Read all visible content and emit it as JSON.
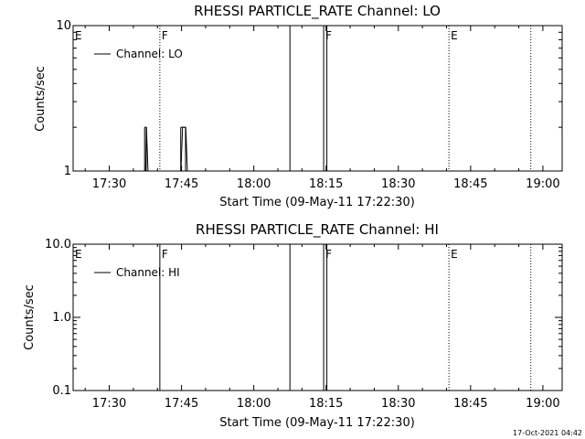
{
  "chart_data": [
    {
      "type": "line",
      "title": "RHESSI PARTICLE_RATE Channel: LO",
      "xlabel": "Start Time (09-May-11 17:22:30)",
      "ylabel": "Counts/sec",
      "y_scale": "log",
      "ylim": [
        1,
        10
      ],
      "xlim": [
        "17:22:30",
        "19:04:00"
      ],
      "x_ticks": [
        "17:30",
        "17:45",
        "18:00",
        "18:15",
        "18:30",
        "18:45",
        "19:00"
      ],
      "y_ticks": [
        "1",
        "10"
      ],
      "legend": {
        "label": "Channel: LO",
        "placement": "top-left"
      },
      "series": [
        {
          "name": "Channel: LO",
          "points": [
            {
              "x": "17:37:10",
              "y": 1
            },
            {
              "x": "17:37:20",
              "y": 2
            },
            {
              "x": "17:37:40",
              "y": 1
            },
            {
              "x": "17:44:30",
              "y": 1
            },
            {
              "x": "17:44:50",
              "y": 2
            },
            {
              "x": "17:45:30",
              "y": 2
            },
            {
              "x": "17:45:50",
              "y": 1
            }
          ]
        }
      ],
      "flags": [
        {
          "label": "E",
          "x": "17:22:30",
          "style": "dotted"
        },
        {
          "label": "F",
          "x": "17:40:30",
          "style": "dotted"
        },
        {
          "label": "",
          "x": "18:07:30",
          "style": "solid"
        },
        {
          "label": "F",
          "x": "18:14:30",
          "style": "solid"
        },
        {
          "label": "",
          "x": "18:15:10",
          "style": "solid"
        },
        {
          "label": "E",
          "x": "18:40:30",
          "style": "dotted"
        },
        {
          "label": "",
          "x": "18:57:30",
          "style": "dotted"
        }
      ]
    },
    {
      "type": "line",
      "title": "RHESSI PARTICLE_RATE Channel: HI",
      "xlabel": "Start Time (09-May-11 17:22:30)",
      "ylabel": "Counts/sec",
      "y_scale": "log",
      "ylim": [
        0.1,
        10
      ],
      "xlim": [
        "17:22:30",
        "19:04:00"
      ],
      "x_ticks": [
        "17:30",
        "17:45",
        "18:00",
        "18:15",
        "18:30",
        "18:45",
        "19:00"
      ],
      "y_ticks": [
        "0.1",
        "1.0",
        "10.0"
      ],
      "legend": {
        "label": "Channel: HI",
        "placement": "top-left"
      },
      "series": [
        {
          "name": "Channel: HI",
          "points": []
        }
      ],
      "flags": [
        {
          "label": "E",
          "x": "17:22:30",
          "style": "dotted"
        },
        {
          "label": "F",
          "x": "17:40:30",
          "style": "solid"
        },
        {
          "label": "",
          "x": "18:07:30",
          "style": "solid"
        },
        {
          "label": "F",
          "x": "18:14:30",
          "style": "solid"
        },
        {
          "label": "",
          "x": "18:15:10",
          "style": "solid"
        },
        {
          "label": "E",
          "x": "18:40:30",
          "style": "dotted"
        },
        {
          "label": "",
          "x": "18:57:30",
          "style": "dotted"
        }
      ]
    }
  ],
  "timestamp": "17-Oct-2021 04:42"
}
